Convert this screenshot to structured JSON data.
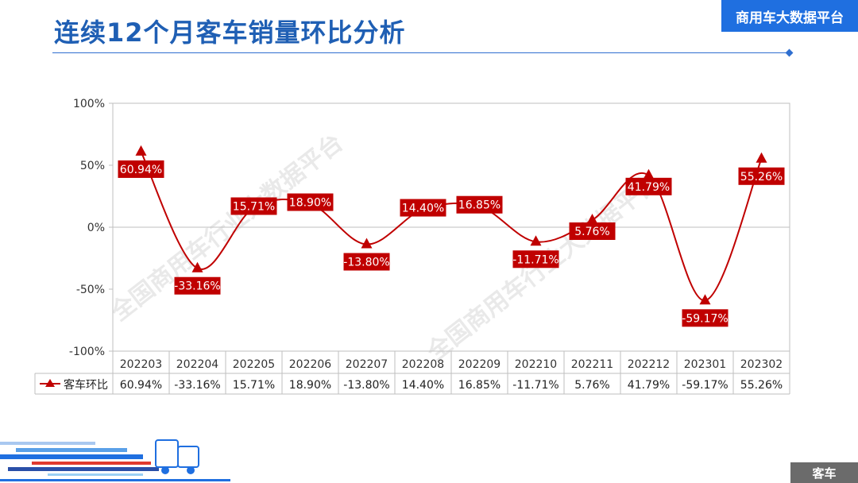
{
  "page": {
    "title": "连续12个月客车销量环比分析",
    "brand": "商用车大数据平台",
    "category": "客车",
    "watermark": "全国商用车行业大数据平台"
  },
  "colors": {
    "title": "#1f5fb4",
    "brand_bg": "#1f6fe0",
    "series": "#c00000",
    "tag_bg": "#6b6b6b"
  },
  "icons": [
    "truck-illustration"
  ],
  "chart_data": {
    "type": "line",
    "title": "",
    "xlabel": "",
    "ylabel": "",
    "smooth": true,
    "marker": "triangle",
    "categories": [
      "202203",
      "202204",
      "202205",
      "202206",
      "202207",
      "202208",
      "202209",
      "202210",
      "202211",
      "202212",
      "202301",
      "202302"
    ],
    "yticks": [
      "100%",
      "50%",
      "0%",
      "-50%",
      "-100%"
    ],
    "ylim": [
      -100,
      100
    ],
    "grid": false,
    "zero_line": true,
    "series": [
      {
        "name": "客车环比",
        "values": [
          60.94,
          -33.16,
          15.71,
          18.9,
          -13.8,
          14.4,
          16.85,
          -11.71,
          5.76,
          41.79,
          -59.17,
          55.26
        ],
        "labels": [
          "60.94%",
          "-33.16%",
          "15.71%",
          "18.90%",
          "-13.80%",
          "14.40%",
          "16.85%",
          "-11.71%",
          "5.76%",
          "41.79%",
          "-59.17%",
          "55.26%"
        ]
      }
    ],
    "data_table": true
  }
}
